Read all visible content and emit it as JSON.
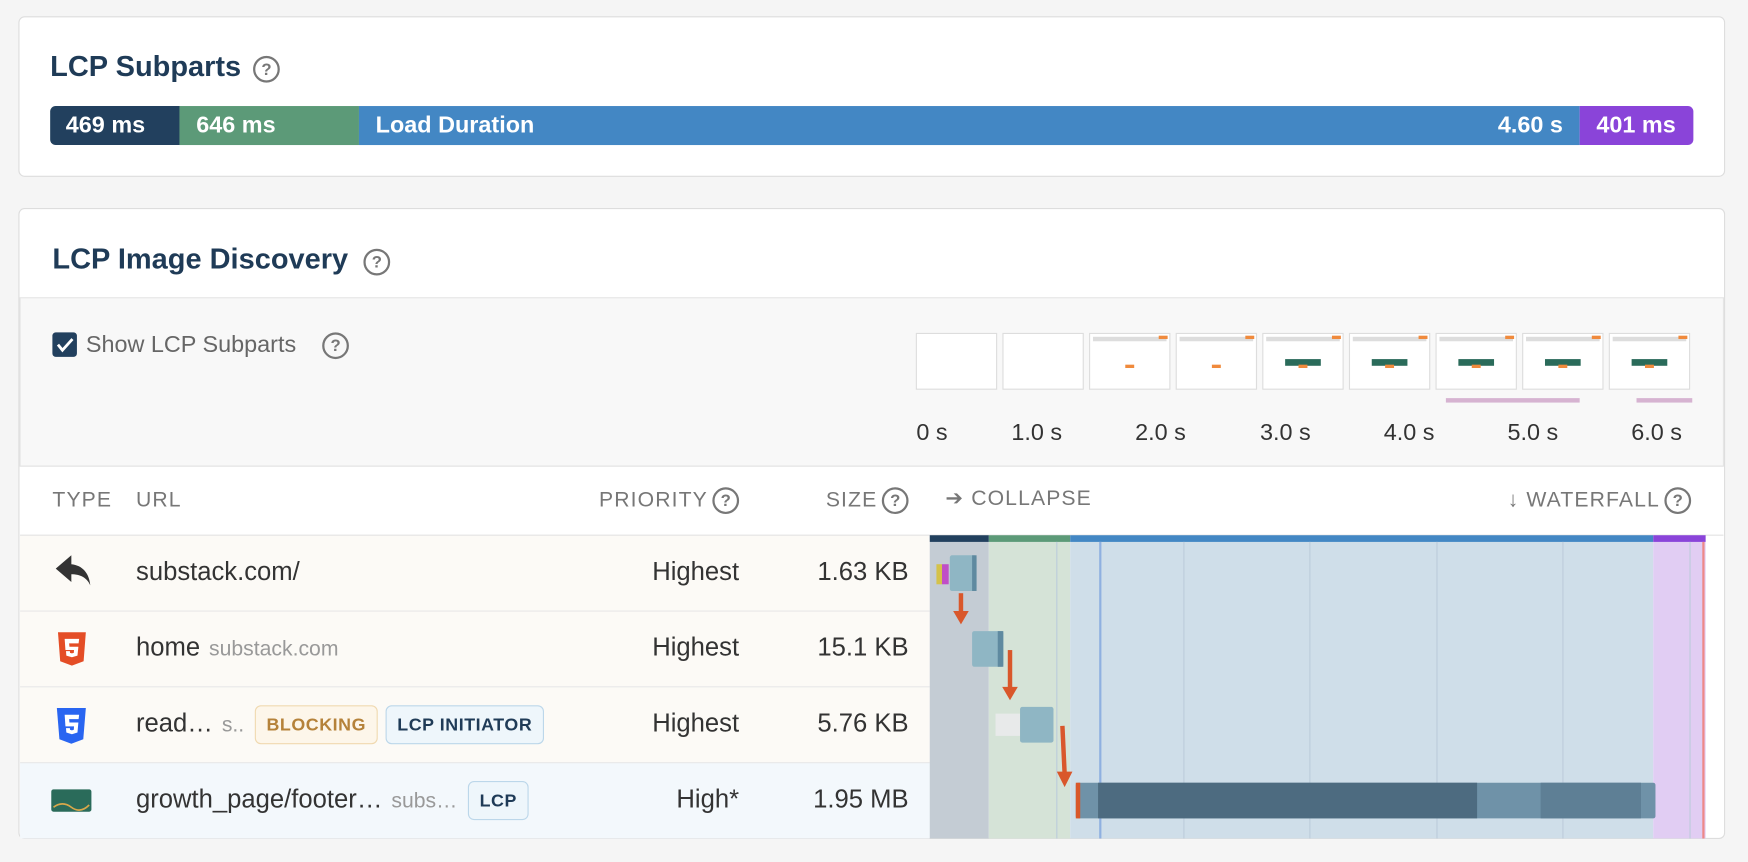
{
  "subparts": {
    "title": "LCP Subparts",
    "segments": [
      "469 ms",
      "646 ms",
      "Load Duration",
      "4.60 s",
      "401 ms"
    ]
  },
  "discovery": {
    "title": "LCP Image Discovery",
    "checkbox": "Show LCP Subparts",
    "timeline": [
      "0 s",
      "1.0 s",
      "2.0 s",
      "3.0 s",
      "4.0 s",
      "5.0 s",
      "6.0 s"
    ],
    "columns": [
      "TYPE",
      "URL",
      "PRIORITY",
      "SIZE",
      "➔ COLLAPSE",
      "↓ WATERFALL"
    ],
    "rows": [
      {
        "url": "substack.com/",
        "priority": "Highest",
        "size": "1.63 KB"
      },
      {
        "url": "home",
        "host": "substack.com",
        "priority": "Highest",
        "size": "15.1 KB"
      },
      {
        "url": "read…",
        "host": "s..",
        "tags": [
          "BLOCKING",
          "LCP INITIATOR"
        ],
        "priority": "Highest",
        "size": "5.76 KB"
      },
      {
        "url": "growth_page/footer…",
        "host": "subs…",
        "tags": [
          "LCP"
        ],
        "priority": "High*",
        "size": "1.95 MB"
      }
    ]
  }
}
